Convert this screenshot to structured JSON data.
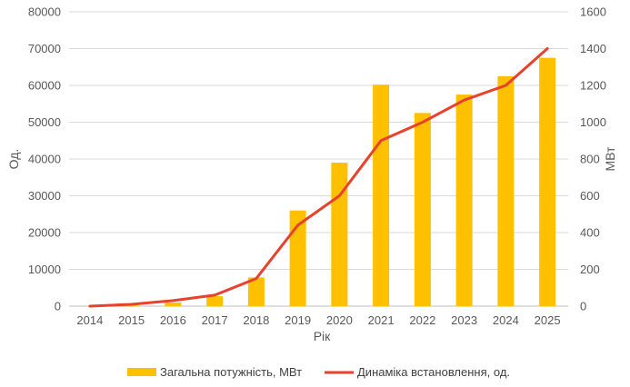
{
  "chart_data": {
    "type": "bar+line",
    "categories": [
      "2014",
      "2015",
      "2016",
      "2017",
      "2018",
      "2019",
      "2020",
      "2021",
      "2022",
      "2023",
      "2024",
      "2025"
    ],
    "series": [
      {
        "name": "Загальна потужність, МВт",
        "type": "bar",
        "axis": "left",
        "color": "#FFC000",
        "values": [
          0,
          200,
          1000,
          2700,
          7800,
          26000,
          39000,
          60200,
          52500,
          57500,
          62500,
          67500
        ]
      },
      {
        "name": "Динаміка встановлення, од.",
        "type": "line",
        "axis": "right",
        "color": "#E8412C",
        "values": [
          0,
          10,
          30,
          60,
          150,
          440,
          600,
          900,
          1000,
          1120,
          1200,
          1400
        ]
      }
    ],
    "xlabel": "Рік",
    "ylabel_left": "Од.",
    "ylabel_right": "МВт",
    "ylim_left": [
      0,
      80000
    ],
    "ylim_right": [
      0,
      1600
    ],
    "yticks_left": [
      "0",
      "10000",
      "20000",
      "30000",
      "40000",
      "50000",
      "60000",
      "70000",
      "80000"
    ],
    "yticks_right": [
      "0",
      "200",
      "400",
      "600",
      "800",
      "1000",
      "1200",
      "1400",
      "1600"
    ],
    "grid": true,
    "legend_position": "bottom"
  }
}
